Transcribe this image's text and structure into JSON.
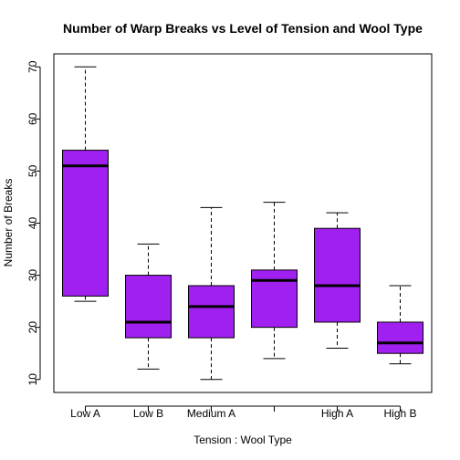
{
  "chart_data": {
    "type": "box",
    "title": "Number of Warp Breaks vs Level of Tension and Wool Type",
    "xlabel": "Tension : Wool Type",
    "ylabel": "Number of Breaks",
    "ylim": [
      7.5,
      72.5
    ],
    "yticks": [
      10,
      20,
      30,
      40,
      50,
      60,
      70
    ],
    "categories": [
      "Low A",
      "Low B",
      "Medium A",
      "",
      "High A",
      "High B"
    ],
    "box_color": "#A020F0",
    "boxes": [
      {
        "category": "Low A",
        "min": 25,
        "q1": 26,
        "median": 51,
        "q3": 54,
        "max": 70
      },
      {
        "category": "Low B",
        "min": 12,
        "q1": 18,
        "median": 21,
        "q3": 30,
        "max": 36
      },
      {
        "category": "Medium A",
        "min": 10,
        "q1": 18,
        "median": 24,
        "q3": 28,
        "max": 43
      },
      {
        "category": "",
        "min": 14,
        "q1": 20,
        "median": 29,
        "q3": 31,
        "max": 44
      },
      {
        "category": "High A",
        "min": 16,
        "q1": 21,
        "median": 28,
        "q3": 39,
        "max": 42
      },
      {
        "category": "High B",
        "min": 13,
        "q1": 15,
        "median": 17,
        "q3": 21,
        "max": 28
      }
    ]
  }
}
